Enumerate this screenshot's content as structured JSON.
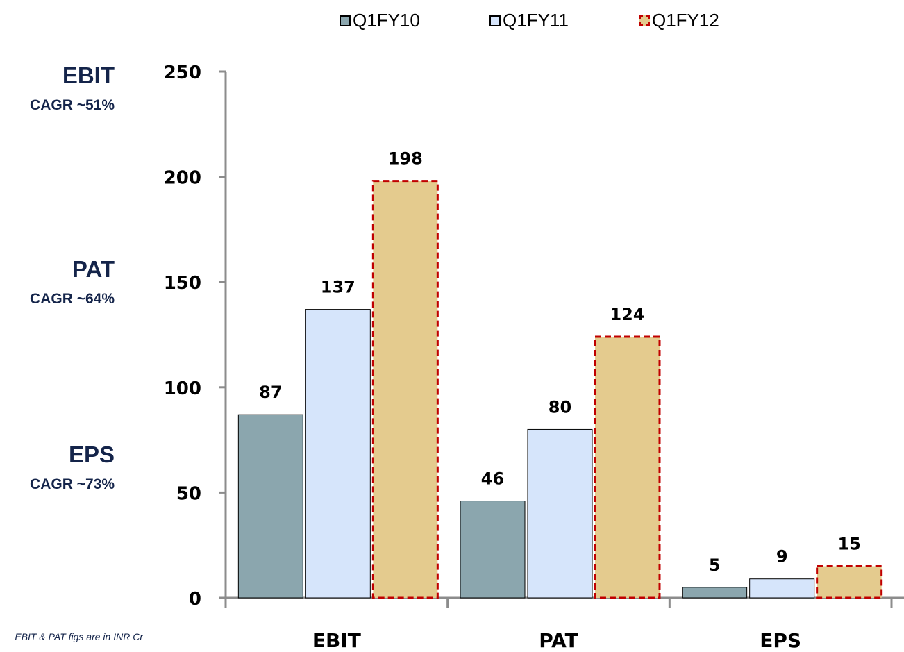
{
  "colors": {
    "q1fy10_fill": "#8ba6ae",
    "q1fy11_fill": "#d6e5fb",
    "q1fy12_fill": "#e4cb8e",
    "q1fy12_border": "#c00000",
    "label_navy": "#14244a",
    "axis": "#8c8c8c"
  },
  "side_metrics": [
    {
      "name": "EBIT",
      "cagr": "CAGR ~51%"
    },
    {
      "name": "PAT",
      "cagr": "CAGR ~64%"
    },
    {
      "name": "EPS",
      "cagr": "CAGR ~73%"
    }
  ],
  "footnote": "EBIT & PAT figs are in INR Cr",
  "chart_data": {
    "type": "bar",
    "categories": [
      "EBIT",
      "PAT",
      "EPS"
    ],
    "series": [
      {
        "name": "Q1FY10",
        "values": [
          87,
          46,
          5
        ]
      },
      {
        "name": "Q1FY11",
        "values": [
          137,
          80,
          9
        ]
      },
      {
        "name": "Q1FY12",
        "values": [
          198,
          124,
          15
        ]
      }
    ],
    "data_labels": [
      [
        "87",
        "46",
        "5"
      ],
      [
        "137",
        "80",
        "9"
      ],
      [
        "198",
        "124",
        "15"
      ]
    ],
    "ylim": [
      0,
      250
    ],
    "yticks": [
      0,
      50,
      100,
      150,
      200,
      250
    ],
    "legend_position": "top",
    "grid": false
  }
}
